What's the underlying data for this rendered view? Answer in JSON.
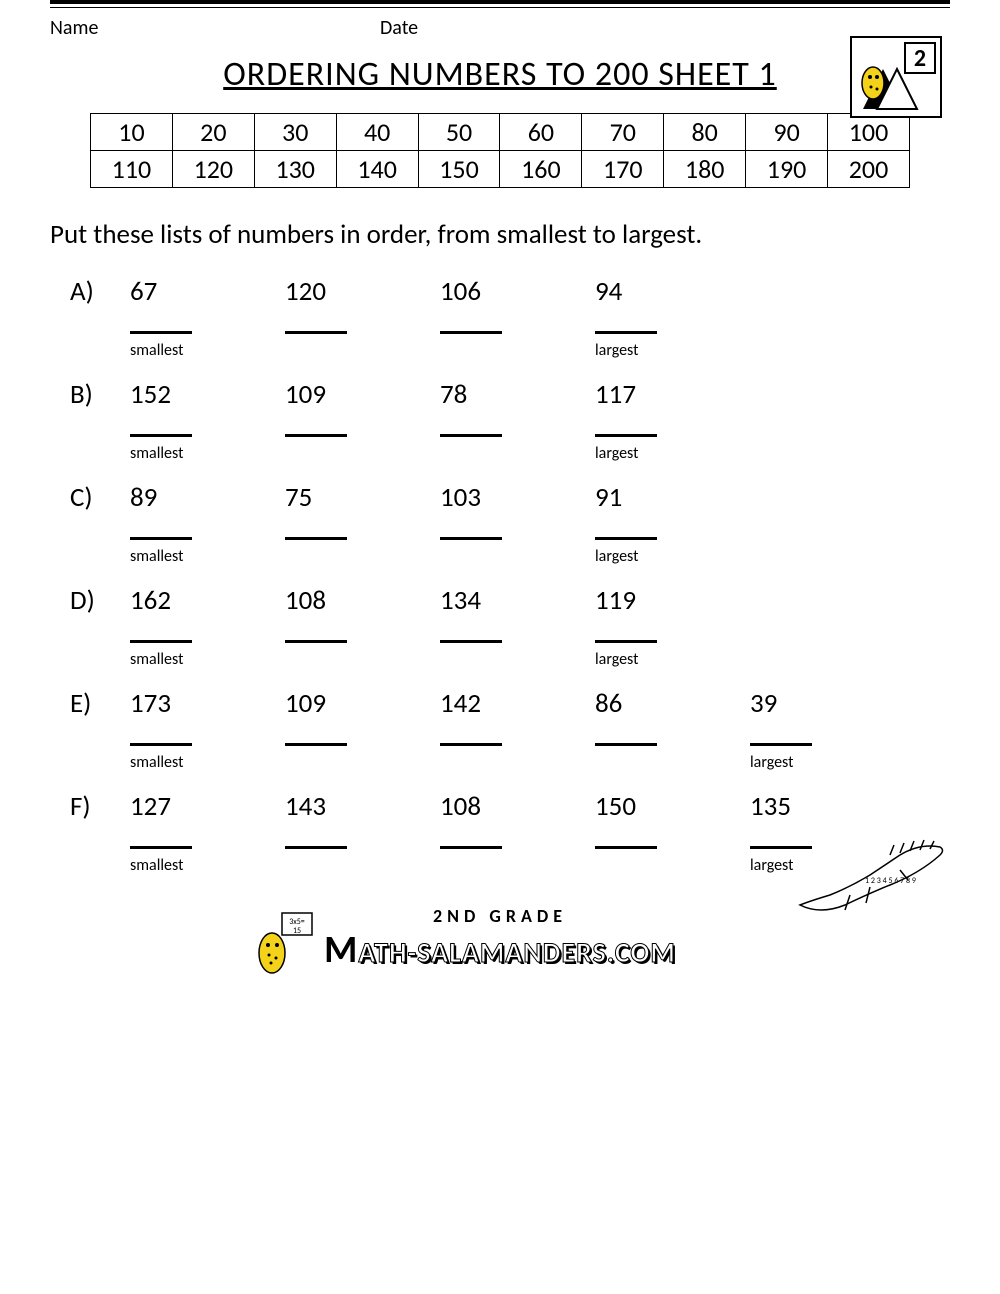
{
  "meta": {
    "name_label": "Name",
    "date_label": "Date"
  },
  "title": "ORDERING NUMBERS TO 200 SHEET 1",
  "logo": {
    "grade_number": "2",
    "icon": "salamander-icon"
  },
  "reference_table": {
    "rows": [
      [
        "10",
        "20",
        "30",
        "40",
        "50",
        "60",
        "70",
        "80",
        "90",
        "100"
      ],
      [
        "110",
        "120",
        "130",
        "140",
        "150",
        "160",
        "170",
        "180",
        "190",
        "200"
      ]
    ],
    "border_color": "#000000",
    "cell_fontsize": 26
  },
  "instruction": "Put these lists of numbers in order, from smallest to largest.",
  "labels": {
    "smallest": "smallest",
    "largest": "largest"
  },
  "problems": [
    {
      "label": "A)",
      "nums": [
        "67",
        "120",
        "106",
        "94"
      ]
    },
    {
      "label": "B)",
      "nums": [
        "152",
        "109",
        "78",
        "117"
      ]
    },
    {
      "label": "C)",
      "nums": [
        "89",
        "75",
        "103",
        "91"
      ]
    },
    {
      "label": "D)",
      "nums": [
        "162",
        "108",
        "134",
        "119"
      ]
    },
    {
      "label": "E)",
      "nums": [
        "173",
        "109",
        "142",
        "86",
        "39"
      ]
    },
    {
      "label": "F)",
      "nums": [
        "127",
        "143",
        "108",
        "150",
        "135"
      ]
    }
  ],
  "footer": {
    "grade": "2ND GRADE",
    "brand": "ATH-SALAMANDERS.COM",
    "brand_prefix": "M"
  },
  "style": {
    "font_family": "Calibri, Arial, sans-serif",
    "title_fontsize": 34,
    "body_fontsize": 27,
    "tag_fontsize": 16,
    "text_color": "#000000",
    "background_color": "#ffffff",
    "accent_color": "#f5d21a"
  }
}
